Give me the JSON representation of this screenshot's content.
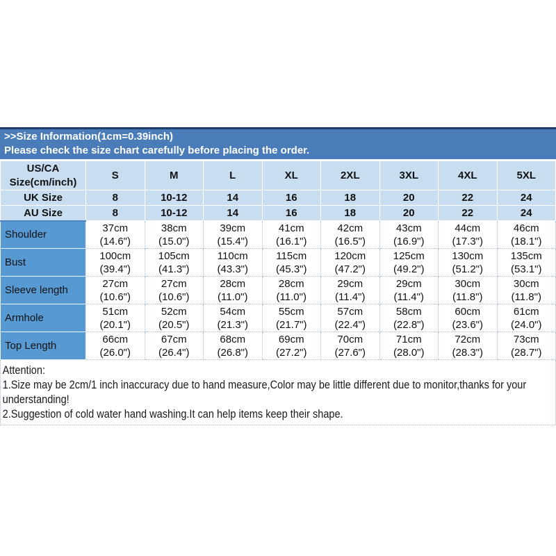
{
  "banner": {
    "line1": ">>Size Information(1cm=0.39inch)",
    "line2": "Please check the size chart carefully before placing the order."
  },
  "table": {
    "corner": {
      "line1": "US/CA",
      "line2": "Size(cm/inch)"
    },
    "size_headers": [
      "S",
      "M",
      "L",
      "XL",
      "2XL",
      "3XL",
      "4XL",
      "5XL"
    ],
    "uk_row": {
      "label": "UK Size",
      "values": [
        "8",
        "10-12",
        "14",
        "16",
        "18",
        "20",
        "22",
        "24"
      ]
    },
    "au_row": {
      "label": "AU Size",
      "values": [
        "8",
        "10-12",
        "14",
        "16",
        "18",
        "20",
        "22",
        "24"
      ]
    },
    "measurement_rows": [
      {
        "label": "Shoulder",
        "cells": [
          {
            "cm": "37cm",
            "in": "(14.6\")"
          },
          {
            "cm": "38cm",
            "in": "(15.0\")"
          },
          {
            "cm": "39cm",
            "in": "(15.4\")"
          },
          {
            "cm": "41cm",
            "in": "(16.1\")"
          },
          {
            "cm": "42cm",
            "in": "(16.5\")"
          },
          {
            "cm": "43cm",
            "in": "(16.9\")"
          },
          {
            "cm": "44cm",
            "in": "(17.3\")"
          },
          {
            "cm": "46cm",
            "in": "(18.1\")"
          }
        ]
      },
      {
        "label": "Bust",
        "cells": [
          {
            "cm": "100cm",
            "in": "(39.4\")"
          },
          {
            "cm": "105cm",
            "in": "(41.3\")"
          },
          {
            "cm": "110cm",
            "in": "(43.3\")"
          },
          {
            "cm": "115cm",
            "in": "(45.3\")"
          },
          {
            "cm": "120cm",
            "in": "(47.2\")"
          },
          {
            "cm": "125cm",
            "in": "(49.2\")"
          },
          {
            "cm": "130cm",
            "in": "(51.2\")"
          },
          {
            "cm": "135cm",
            "in": "(53.1\")"
          }
        ]
      },
      {
        "label": "Sleeve length",
        "cells": [
          {
            "cm": "27cm",
            "in": "(10.6\")"
          },
          {
            "cm": "27cm",
            "in": "(10.6\")"
          },
          {
            "cm": "28cm",
            "in": "(11.0\")"
          },
          {
            "cm": "28cm",
            "in": "(11.0\")"
          },
          {
            "cm": "29cm",
            "in": "(11.4\")"
          },
          {
            "cm": "29cm",
            "in": "(11.4\")"
          },
          {
            "cm": "30cm",
            "in": "(11.8\")"
          },
          {
            "cm": "30cm",
            "in": "(11.8\")"
          }
        ]
      },
      {
        "label": "Armhole",
        "cells": [
          {
            "cm": "51cm",
            "in": "(20.1\")"
          },
          {
            "cm": "52cm",
            "in": "(20.5\")"
          },
          {
            "cm": "54cm",
            "in": "(21.3\")"
          },
          {
            "cm": "55cm",
            "in": "(21.7\")"
          },
          {
            "cm": "57cm",
            "in": "(22.4\")"
          },
          {
            "cm": "58cm",
            "in": "(22.8\")"
          },
          {
            "cm": "60cm",
            "in": "(23.6\")"
          },
          {
            "cm": "61cm",
            "in": "(24.0\")"
          }
        ]
      },
      {
        "label": "Top Length",
        "cells": [
          {
            "cm": "66cm",
            "in": "(26.0\")"
          },
          {
            "cm": "67cm",
            "in": "(26.4\")"
          },
          {
            "cm": "68cm",
            "in": "(26.8\")"
          },
          {
            "cm": "69cm",
            "in": "(27.2\")"
          },
          {
            "cm": "70cm",
            "in": "(27.6\")"
          },
          {
            "cm": "71cm",
            "in": "(28.0\")"
          },
          {
            "cm": "72cm",
            "in": "(28.3\")"
          },
          {
            "cm": "73cm",
            "in": "(28.7\")"
          }
        ]
      }
    ]
  },
  "attention": {
    "title": "Attention:",
    "note1": "1.Size may be 2cm/1 inch inaccuracy due to hand measure,Color may be little different due to monitor,thanks for your understanding!",
    "note2": "2.Suggestion of cold water hand washing.It can help items keep their shape."
  },
  "colors": {
    "banner_bg": "#4a7cba",
    "banner_top_border": "#1d3d6b",
    "header_row_bg": "#c9ddf1",
    "label_column_bg": "#579ad3",
    "dotted_grid": "#a3bedb",
    "banner_text": "#ffffff",
    "table_text": "#111111"
  }
}
